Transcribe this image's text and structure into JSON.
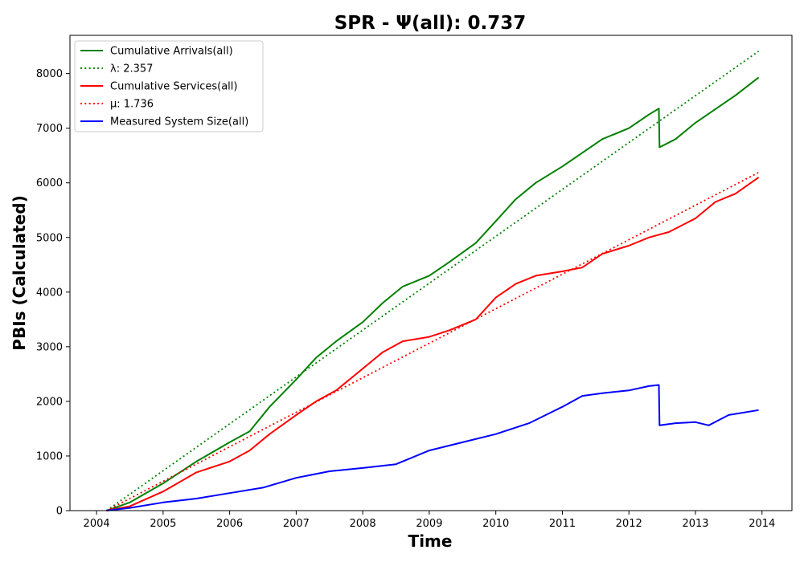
{
  "chart_data": {
    "type": "line",
    "title": "SPR -  Ψ(all): 0.737",
    "xlabel": "Time",
    "ylabel": "PBIs (Calculated)",
    "xlim": [
      2003.6,
      2014.45
    ],
    "ylim": [
      0,
      8700
    ],
    "xticks": [
      "2004",
      "2005",
      "2006",
      "2007",
      "2008",
      "2009",
      "2010",
      "2011",
      "2012",
      "2013",
      "2014"
    ],
    "yticks": [
      "0",
      "1000",
      "2000",
      "3000",
      "4000",
      "5000",
      "6000",
      "7000",
      "8000"
    ],
    "grid": false,
    "legend_position": "top-left",
    "series": [
      {
        "name": "Cumulative Arrivals(all)",
        "style": "solid",
        "color": "#008000",
        "x": [
          2004.15,
          2004.5,
          2005.0,
          2005.5,
          2006.0,
          2006.3,
          2006.6,
          2007.0,
          2007.3,
          2007.6,
          2008.0,
          2008.3,
          2008.6,
          2009.0,
          2009.3,
          2009.7,
          2010.0,
          2010.3,
          2010.6,
          2011.0,
          2011.3,
          2011.6,
          2012.0,
          2012.3,
          2012.45,
          2012.46,
          2012.7,
          2013.0,
          2013.3,
          2013.6,
          2013.95
        ],
        "y": [
          0,
          150,
          500,
          900,
          1250,
          1450,
          1900,
          2400,
          2800,
          3100,
          3450,
          3800,
          4100,
          4300,
          4550,
          4900,
          5300,
          5700,
          6000,
          6300,
          6550,
          6800,
          7000,
          7250,
          7360,
          6650,
          6800,
          7100,
          7350,
          7600,
          7930
        ]
      },
      {
        "name": "λ: 2.357",
        "style": "dotted",
        "color": "#008000",
        "x": [
          2004.15,
          2013.95
        ],
        "y": [
          0,
          8410
        ]
      },
      {
        "name": "Cumulative Services(all)",
        "style": "solid",
        "color": "#ff0000",
        "x": [
          2004.15,
          2004.5,
          2005.0,
          2005.5,
          2006.0,
          2006.3,
          2006.6,
          2007.0,
          2007.3,
          2007.6,
          2008.0,
          2008.3,
          2008.6,
          2009.0,
          2009.3,
          2009.7,
          2010.0,
          2010.3,
          2010.6,
          2011.0,
          2011.3,
          2011.6,
          2012.0,
          2012.3,
          2012.6,
          2013.0,
          2013.3,
          2013.6,
          2013.95
        ],
        "y": [
          0,
          80,
          350,
          700,
          900,
          1100,
          1400,
          1750,
          2000,
          2200,
          2600,
          2900,
          3100,
          3180,
          3300,
          3500,
          3900,
          4150,
          4300,
          4380,
          4450,
          4700,
          4850,
          5000,
          5100,
          5350,
          5650,
          5800,
          6100
        ]
      },
      {
        "name": "μ: 1.736",
        "style": "dotted",
        "color": "#ff0000",
        "x": [
          2004.15,
          2013.95
        ],
        "y": [
          0,
          6190
        ]
      },
      {
        "name": "Measured System Size(all)",
        "style": "solid",
        "color": "#0000ff",
        "x": [
          2004.15,
          2004.5,
          2005.0,
          2005.5,
          2006.0,
          2006.5,
          2007.0,
          2007.5,
          2008.0,
          2008.5,
          2009.0,
          2009.5,
          2010.0,
          2010.5,
          2011.0,
          2011.3,
          2011.6,
          2012.0,
          2012.3,
          2012.45,
          2012.46,
          2012.7,
          2013.0,
          2013.2,
          2013.5,
          2013.95
        ],
        "y": [
          0,
          50,
          150,
          220,
          320,
          420,
          600,
          720,
          780,
          850,
          1100,
          1250,
          1400,
          1600,
          1900,
          2100,
          2150,
          2200,
          2280,
          2300,
          1560,
          1600,
          1620,
          1560,
          1750,
          1840
        ]
      }
    ]
  }
}
